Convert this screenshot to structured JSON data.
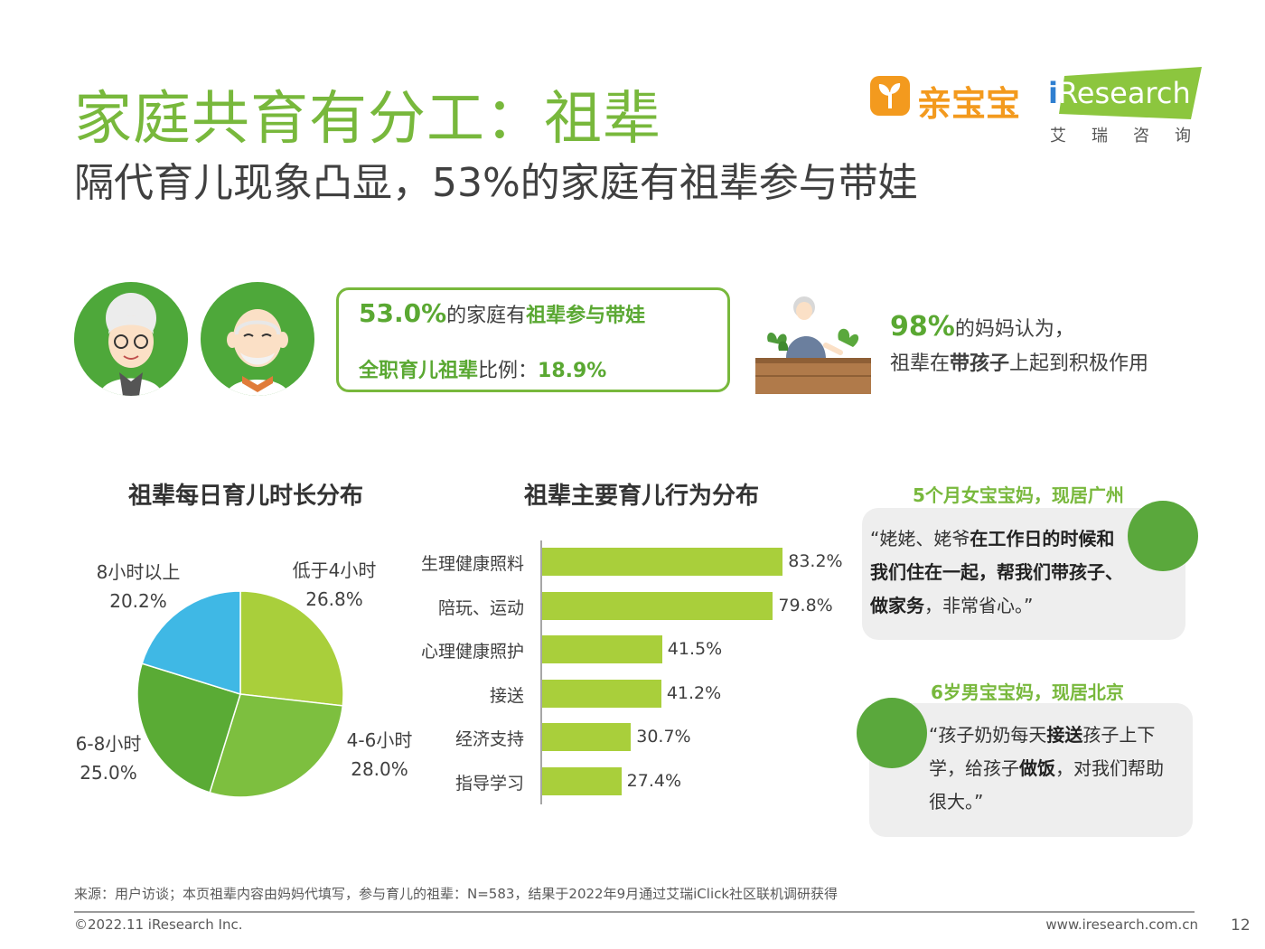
{
  "header": {
    "title": "家庭共育有分工：祖辈",
    "subtitle": "隔代育儿现象凸显，53%的家庭有祖辈参与带娃"
  },
  "logos": {
    "qinbaobao": "亲宝宝",
    "iresearch_i": "i",
    "iresearch_word": "Research",
    "iresearch_cn": "艾瑞咨询"
  },
  "stats": {
    "grandparent_pct": "53.0%",
    "grandparent_text": "的家庭有",
    "grandparent_emph": "祖辈参与带娃",
    "fulltime_label": "全职育儿祖辈",
    "fulltime_text": "比例：",
    "fulltime_pct": "18.9%",
    "mom_pct": "98%",
    "mom_text": "的妈妈认为，",
    "mom_line2_a": "祖辈在",
    "mom_line2_emph": "带孩子",
    "mom_line2_b": "上起到积极作用"
  },
  "colors": {
    "brand_green": "#78b83c",
    "pie_light": "#a9cf3b",
    "pie_mid": "#7dbf3f",
    "pie_dark": "#5aab35",
    "pie_blue": "#3fb8e5",
    "bar": "#a9cf3b"
  },
  "chart_data": [
    {
      "type": "pie",
      "title": "祖辈每日育儿时长分布",
      "labels": [
        "低于4小时",
        "4-6小时",
        "6-8小时",
        "8小时以上"
      ],
      "values": [
        26.8,
        28.0,
        25.0,
        20.2
      ],
      "value_labels": [
        "26.8%",
        "28.0%",
        "25.0%",
        "20.2%"
      ]
    },
    {
      "type": "bar",
      "orientation": "horizontal",
      "title": "祖辈主要育儿行为分布",
      "categories": [
        "生理健康照料",
        "陪玩、运动",
        "心理健康照护",
        "接送",
        "经济支持",
        "指导学习"
      ],
      "values": [
        83.2,
        79.8,
        41.5,
        41.2,
        30.7,
        27.4
      ],
      "value_labels": [
        "83.2%",
        "79.8%",
        "41.5%",
        "41.2%",
        "30.7%",
        "27.4%"
      ],
      "xlim": [
        0,
        100
      ]
    }
  ],
  "quotes": [
    {
      "heading": "5个月女宝宝妈，现居广州",
      "parts": [
        "“姥姥、姥爷",
        "在工作日的时候和我们住在一起，帮我们带孩子、做家务",
        "，非常省心。”"
      ]
    },
    {
      "heading": "6岁男宝宝妈，现居北京",
      "parts": [
        "“孩子奶奶每天",
        "接送",
        "孩子上下学，给孩子",
        "做饭",
        "，对我们帮助很大。”"
      ]
    }
  ],
  "footer": {
    "source": "来源：用户访谈；本页祖辈内容由妈妈代填写，参与育儿的祖辈：N=583，结果于2022年9月通过艾瑞iClick社区联机调研获得",
    "copyright": "©2022.11 iResearch Inc.",
    "website": "www.iresearch.com.cn",
    "page": "12"
  }
}
